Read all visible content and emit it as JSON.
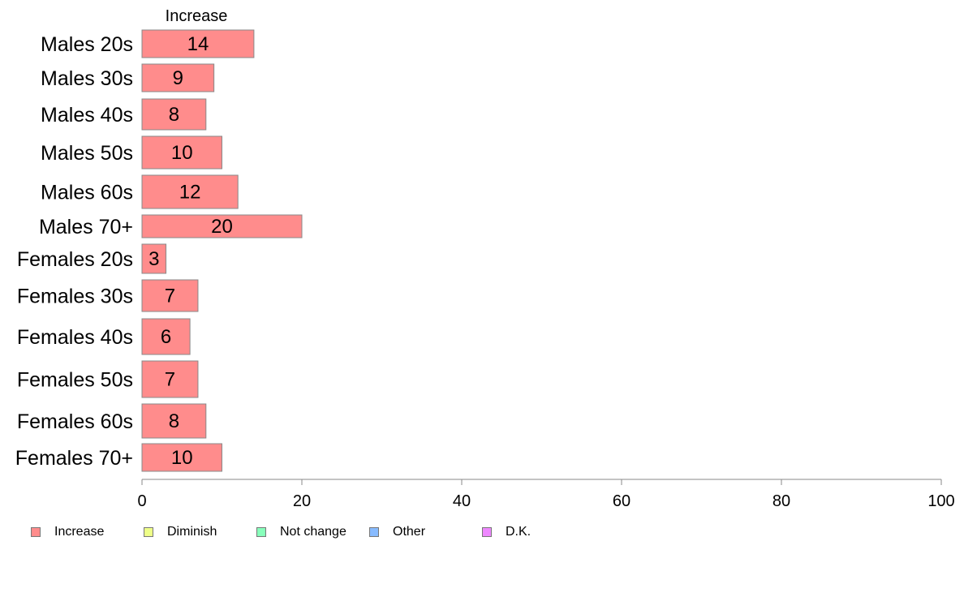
{
  "chart_data": {
    "type": "bar",
    "orientation": "horizontal",
    "stacked": true,
    "series_header": "Increase",
    "categories": [
      "Males 20s",
      "Males 30s",
      "Males 40s",
      "Males 50s",
      "Males 60s",
      "Males 70+",
      "Females 20s",
      "Females 30s",
      "Females 40s",
      "Females 50s",
      "Females 60s",
      "Females 70+"
    ],
    "series": [
      {
        "name": "Increase",
        "color": "#FF8C8C",
        "values": [
          14,
          9,
          8,
          10,
          12,
          20,
          3,
          7,
          6,
          7,
          8,
          10
        ]
      }
    ],
    "data_labels": [
      "14",
      "9",
      "8",
      "10",
      "12",
      "20",
      "3",
      "7",
      "6",
      "7",
      "8",
      "10"
    ],
    "xlim": [
      0,
      100
    ],
    "x_ticks": [
      0,
      20,
      40,
      60,
      80,
      100
    ],
    "x_tick_labels": [
      "0",
      "20",
      "40",
      "60",
      "80",
      "100"
    ],
    "grid": false,
    "legend_position": "bottom-left",
    "legend": [
      {
        "label": "Increase",
        "color": "#FF8C8C"
      },
      {
        "label": "Diminish",
        "color": "#EEFF88"
      },
      {
        "label": "Not change",
        "color": "#88FFBB"
      },
      {
        "label": "Other",
        "color": "#88BBFF"
      },
      {
        "label": "D.K.",
        "color": "#EE88FF"
      }
    ]
  }
}
